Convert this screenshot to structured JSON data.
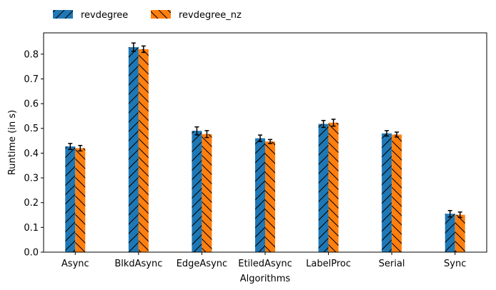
{
  "chart_data": {
    "type": "bar",
    "xlabel": "Algorithms",
    "ylabel": "Runtime (in s)",
    "ylim": [
      0,
      0.886
    ],
    "yticks": [
      0.0,
      0.1,
      0.2,
      0.3,
      0.4,
      0.5,
      0.6,
      0.7,
      0.8
    ],
    "categories": [
      "Async",
      "BlkdAsync",
      "EdgeAsync",
      "EtiledAsync",
      "LabelProc",
      "Serial",
      "Sync"
    ],
    "legend_position": "top-left, outside plot",
    "grid": false,
    "series": [
      {
        "name": "revdegree",
        "color": "#1f77b4",
        "hatch": "forward-diagonal",
        "values": [
          0.427,
          0.828,
          0.49,
          0.46,
          0.518,
          0.48,
          0.155
        ],
        "errors": [
          0.012,
          0.017,
          0.016,
          0.013,
          0.014,
          0.011,
          0.013
        ]
      },
      {
        "name": "revdegree_nz",
        "color": "#ff7f0e",
        "hatch": "back-diagonal",
        "values": [
          0.42,
          0.82,
          0.477,
          0.447,
          0.523,
          0.475,
          0.151
        ],
        "errors": [
          0.011,
          0.013,
          0.014,
          0.008,
          0.014,
          0.01,
          0.011
        ]
      }
    ]
  }
}
